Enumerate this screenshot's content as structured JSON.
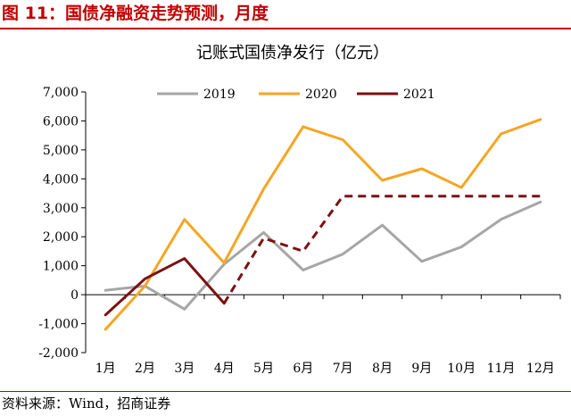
{
  "figure": {
    "title": "图 11：国债净融资走势预测，月度",
    "source": "资料来源：Wind，招商证券"
  },
  "colors": {
    "accent": "#c00000",
    "s2019": "#a6a6a6",
    "s2020": "#f5a623",
    "s2021": "#7b1113",
    "axis": "#000000"
  },
  "chart_data": {
    "type": "line",
    "title": "记账式国债净发行（亿元）",
    "xlabel": "",
    "ylabel": "",
    "categories": [
      "1月",
      "2月",
      "3月",
      "4月",
      "5月",
      "6月",
      "7月",
      "8月",
      "9月",
      "10月",
      "11月",
      "12月"
    ],
    "ylim": [
      -2000,
      7000
    ],
    "yticks": [
      -2000,
      -1000,
      0,
      1000,
      2000,
      3000,
      4000,
      5000,
      6000,
      7000
    ],
    "ytick_labels": [
      "-2,000",
      "-1,000",
      "0",
      "1,000",
      "2,000",
      "3,000",
      "4,000",
      "5,000",
      "6,000",
      "7,000"
    ],
    "grid": false,
    "legend": "top-center",
    "series": [
      {
        "name": "2019",
        "style": "solid",
        "values": [
          150,
          300,
          -500,
          1050,
          2150,
          850,
          1400,
          2400,
          1150,
          1650,
          2600,
          3200
        ]
      },
      {
        "name": "2020",
        "style": "solid",
        "values": [
          -1200,
          300,
          2600,
          1100,
          3650,
          5800,
          5350,
          3950,
          4350,
          3700,
          5550,
          6050
        ]
      },
      {
        "name": "2021",
        "style": "solid",
        "values": [
          -700,
          550,
          1250,
          -300,
          null,
          null,
          null,
          null,
          null,
          null,
          null,
          null
        ]
      },
      {
        "name": "2021",
        "style": "dashed",
        "values": [
          null,
          null,
          null,
          -300,
          1950,
          1500,
          3400,
          3400,
          3400,
          3400,
          3400,
          3400
        ]
      }
    ]
  }
}
